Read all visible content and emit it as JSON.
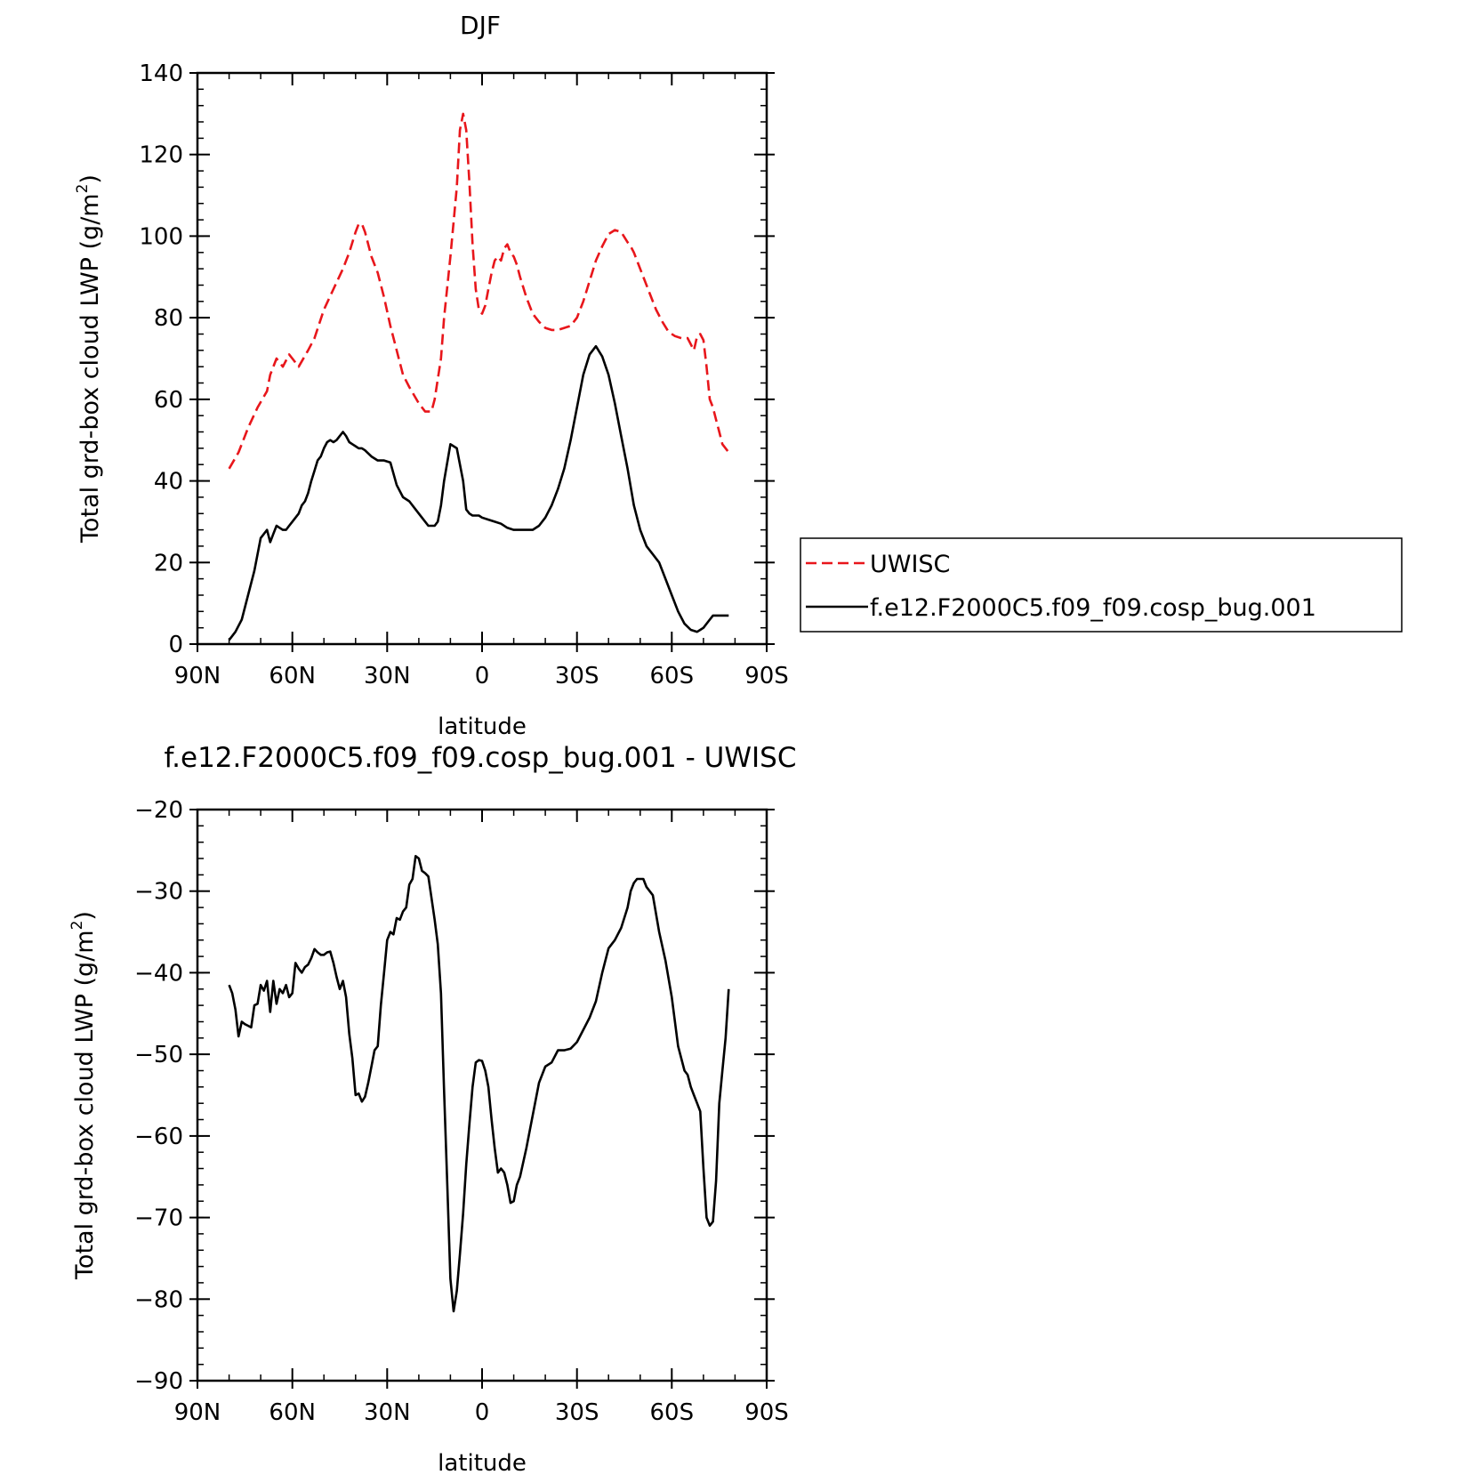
{
  "chart_data": [
    {
      "type": "line",
      "title": "DJF",
      "xlabel": "latitude",
      "ylabel": "Total grd-box cloud LWP (g/m²)",
      "ylabel_base": "Total grd-box cloud LWP (g/m",
      "ylabel_sup": "2",
      "ylabel_close": ")",
      "xlim": [
        90,
        -90
      ],
      "ylim": [
        0,
        140
      ],
      "x_ticks": [
        90,
        60,
        30,
        0,
        -30,
        -60,
        -90
      ],
      "x_tick_labels": [
        "90N",
        "60N",
        "30N",
        "0",
        "30S",
        "60S",
        "90S"
      ],
      "y_ticks": [
        0,
        20,
        40,
        60,
        80,
        100,
        120,
        140
      ],
      "y_tick_labels": [
        "0",
        "20",
        "40",
        "60",
        "80",
        "100",
        "120",
        "140"
      ],
      "legend": {
        "placement": "right",
        "entries": [
          "UWISC",
          "f.e12.F2000C5.f09_f09.cosp_bug.001"
        ]
      },
      "series": [
        {
          "name": "UWISC",
          "color": "#e8161b",
          "dash": "dashed",
          "x": [
            80,
            77,
            74,
            71,
            68,
            67,
            65,
            63,
            61,
            60,
            58,
            55,
            53,
            50,
            47,
            44,
            42,
            40,
            39,
            38,
            37,
            35,
            33,
            31,
            29,
            27,
            25,
            23,
            20,
            18,
            16,
            15,
            13,
            12,
            10,
            8,
            7,
            6,
            5,
            4,
            3,
            2,
            1,
            0,
            -1,
            -2,
            -3,
            -4,
            -5,
            -6,
            -7,
            -8,
            -9,
            -10,
            -11,
            -12,
            -14,
            -16,
            -18,
            -20,
            -22,
            -24,
            -26,
            -28,
            -30,
            -32,
            -34,
            -36,
            -38,
            -40,
            -42,
            -44,
            -46,
            -47,
            -48,
            -49,
            -51,
            -53,
            -55,
            -57,
            -59,
            -61,
            -63,
            -65,
            -67,
            -68,
            -69,
            -70,
            -71,
            -72,
            -73,
            -74,
            -75,
            -76,
            -77,
            -78
          ],
          "values": [
            43,
            47,
            53,
            58,
            62,
            66,
            70,
            68,
            71,
            70,
            68,
            72,
            75,
            82,
            87,
            92,
            96,
            101,
            103,
            103,
            101,
            95,
            91,
            85,
            78,
            72,
            66,
            63,
            59,
            57,
            57,
            60,
            70,
            80,
            95,
            112,
            126,
            130,
            126,
            113,
            98,
            87,
            82,
            81,
            83,
            87,
            91,
            94,
            95,
            94,
            97,
            98,
            96,
            95,
            93,
            90,
            85,
            81,
            79,
            77.5,
            77,
            77,
            77.5,
            78,
            80,
            84,
            89,
            94,
            97.5,
            100.5,
            101.5,
            101,
            98.5,
            97.5,
            96,
            94,
            90,
            86,
            82,
            79,
            76.5,
            75.5,
            75,
            75,
            72,
            75.5,
            76,
            74.5,
            68,
            60,
            58,
            55,
            52,
            49,
            48,
            47
          ]
        },
        {
          "name": "f.e12.F2000C5.f09_f09.cosp_bug.001",
          "color": "#000000",
          "dash": "solid",
          "x": [
            80,
            78,
            76,
            74,
            72,
            70,
            69,
            68,
            67,
            66,
            65,
            64,
            63,
            62,
            61,
            60,
            58,
            57,
            56,
            55,
            54,
            53,
            52,
            51,
            50,
            49,
            48,
            47,
            46,
            45,
            44,
            43,
            42,
            41,
            40,
            39,
            38,
            37,
            35,
            33,
            31,
            29,
            27,
            25,
            23,
            21,
            19,
            17,
            15,
            14,
            13,
            12,
            10,
            8,
            6,
            5,
            4,
            3,
            2,
            1,
            0,
            -2,
            -4,
            -6,
            -8,
            -10,
            -12,
            -14,
            -16,
            -18,
            -20,
            -22,
            -24,
            -26,
            -28,
            -30,
            -32,
            -34,
            -36,
            -38,
            -40,
            -42,
            -44,
            -46,
            -48,
            -50,
            -52,
            -54,
            -56,
            -58,
            -60,
            -62,
            -64,
            -66,
            -68,
            -69,
            -70,
            -71,
            -72,
            -73,
            -74,
            -75,
            -76,
            -77,
            -78
          ],
          "values": [
            1,
            3,
            6,
            12,
            18,
            26,
            27,
            28,
            25,
            27,
            29,
            28.5,
            28,
            28,
            29,
            30,
            32,
            34,
            35,
            37,
            40,
            42.5,
            45,
            46,
            48,
            49.5,
            50,
            49.5,
            50,
            51,
            52,
            51,
            49.5,
            49,
            48.5,
            48,
            48,
            47.5,
            46,
            45,
            45,
            44.5,
            39,
            36,
            35,
            33,
            31,
            29,
            29,
            30,
            34,
            40,
            49,
            48,
            40,
            33,
            32,
            31.5,
            31.5,
            31.5,
            31,
            30.5,
            30,
            29.5,
            28.5,
            28,
            28,
            28,
            28,
            29,
            31,
            34,
            38,
            43,
            50,
            58,
            66,
            71,
            73,
            70.5,
            66,
            59,
            51,
            43,
            34,
            28,
            24,
            22,
            20,
            16,
            12,
            8,
            5,
            3.5,
            3,
            3.5,
            4,
            5,
            6,
            7,
            7,
            7,
            7,
            7,
            7
          ]
        }
      ]
    },
    {
      "type": "line",
      "title": "f.e12.F2000C5.f09_f09.cosp_bug.001  -  UWISC",
      "xlabel": "latitude",
      "ylabel": "Total grd-box cloud LWP (g/m²)",
      "ylabel_base": "Total grd-box cloud LWP (g/m",
      "ylabel_sup": "2",
      "ylabel_close": ")",
      "xlim": [
        90,
        -90
      ],
      "ylim": [
        -90,
        -20
      ],
      "x_ticks": [
        90,
        60,
        30,
        0,
        -30,
        -60,
        -90
      ],
      "x_tick_labels": [
        "90N",
        "60N",
        "30N",
        "0",
        "30S",
        "60S",
        "90S"
      ],
      "y_ticks": [
        -90,
        -80,
        -70,
        -60,
        -50,
        -40,
        -30,
        -20
      ],
      "y_tick_labels": [
        "−90",
        "−80",
        "−70",
        "−60",
        "−50",
        "−40",
        "−30",
        "−20"
      ],
      "series": [
        {
          "color": "#000000",
          "dash": "solid",
          "x": [
            80,
            79,
            78,
            77,
            76,
            75,
            74,
            73,
            72,
            71,
            70,
            69,
            68,
            67,
            66,
            65,
            64,
            63,
            62,
            61,
            60,
            59,
            58,
            57,
            56,
            55,
            54,
            53,
            52,
            51,
            50,
            49,
            48,
            47,
            46,
            45,
            44,
            43,
            42,
            41,
            40,
            39,
            38,
            37,
            36,
            35,
            34,
            33,
            32,
            31,
            30,
            29,
            28,
            27,
            26,
            25,
            24,
            23,
            22,
            21,
            20,
            19,
            18,
            17,
            16,
            15,
            14,
            13,
            12,
            11,
            10,
            9,
            8,
            7,
            6,
            5,
            4,
            3,
            2,
            1,
            0,
            -1,
            -2,
            -3,
            -4,
            -5,
            -6,
            -7,
            -8,
            -9,
            -10,
            -11,
            -12,
            -14,
            -16,
            -18,
            -20,
            -22,
            -24,
            -26,
            -28,
            -30,
            -32,
            -34,
            -36,
            -38,
            -40,
            -42,
            -44,
            -46,
            -47,
            -48,
            -49,
            -50,
            -51,
            -52,
            -54,
            -56,
            -58,
            -60,
            -62,
            -64,
            -65,
            -66,
            -67,
            -68,
            -69,
            -70,
            -71,
            -72,
            -73,
            -74,
            -75,
            -76,
            -77,
            -78
          ],
          "values": [
            -41.5,
            -42.5,
            -44.5,
            -47.8,
            -46,
            -46.3,
            -46.5,
            -46.7,
            -44,
            -43.8,
            -41.5,
            -42.2,
            -41,
            -44.8,
            -41,
            -43.8,
            -42,
            -42.5,
            -41.5,
            -43,
            -42.5,
            -38.8,
            -39.5,
            -40,
            -39.3,
            -39,
            -38.2,
            -37.1,
            -37.5,
            -37.8,
            -37.8,
            -37.5,
            -37.4,
            -38.8,
            -40.5,
            -42,
            -41,
            -43,
            -47.5,
            -50.5,
            -55,
            -54.8,
            -55.8,
            -55.2,
            -53.5,
            -51.5,
            -49.5,
            -49,
            -44,
            -40,
            -36,
            -35,
            -35.3,
            -33.3,
            -33.5,
            -32.5,
            -32,
            -29.2,
            -28.5,
            -25.7,
            -26,
            -27.5,
            -27.8,
            -28.2,
            -30.8,
            -33.5,
            -36.5,
            -42.5,
            -54.5,
            -66,
            -77.5,
            -81.5,
            -79,
            -74.5,
            -69.5,
            -63.5,
            -58.5,
            -54,
            -51,
            -50.7,
            -50.8,
            -52,
            -54,
            -58,
            -61.5,
            -64.5,
            -64,
            -64.5,
            -66,
            -68.2,
            -68,
            -66,
            -65,
            -61.5,
            -57.5,
            -53.5,
            -51.5,
            -51,
            -49.5,
            -49.5,
            -49.3,
            -48.5,
            -47,
            -45.5,
            -43.5,
            -40,
            -37,
            -36,
            -34.5,
            -32,
            -30,
            -29,
            -28.5,
            -28.5,
            -28.5,
            -29.5,
            -30.5,
            -35,
            -38.5,
            -43,
            -49,
            -52,
            -52.5,
            -54,
            -55,
            -56,
            -57,
            -64,
            -70,
            -71,
            -70.5,
            -65.5,
            -56,
            -52,
            -48,
            -42
          ]
        }
      ]
    }
  ]
}
